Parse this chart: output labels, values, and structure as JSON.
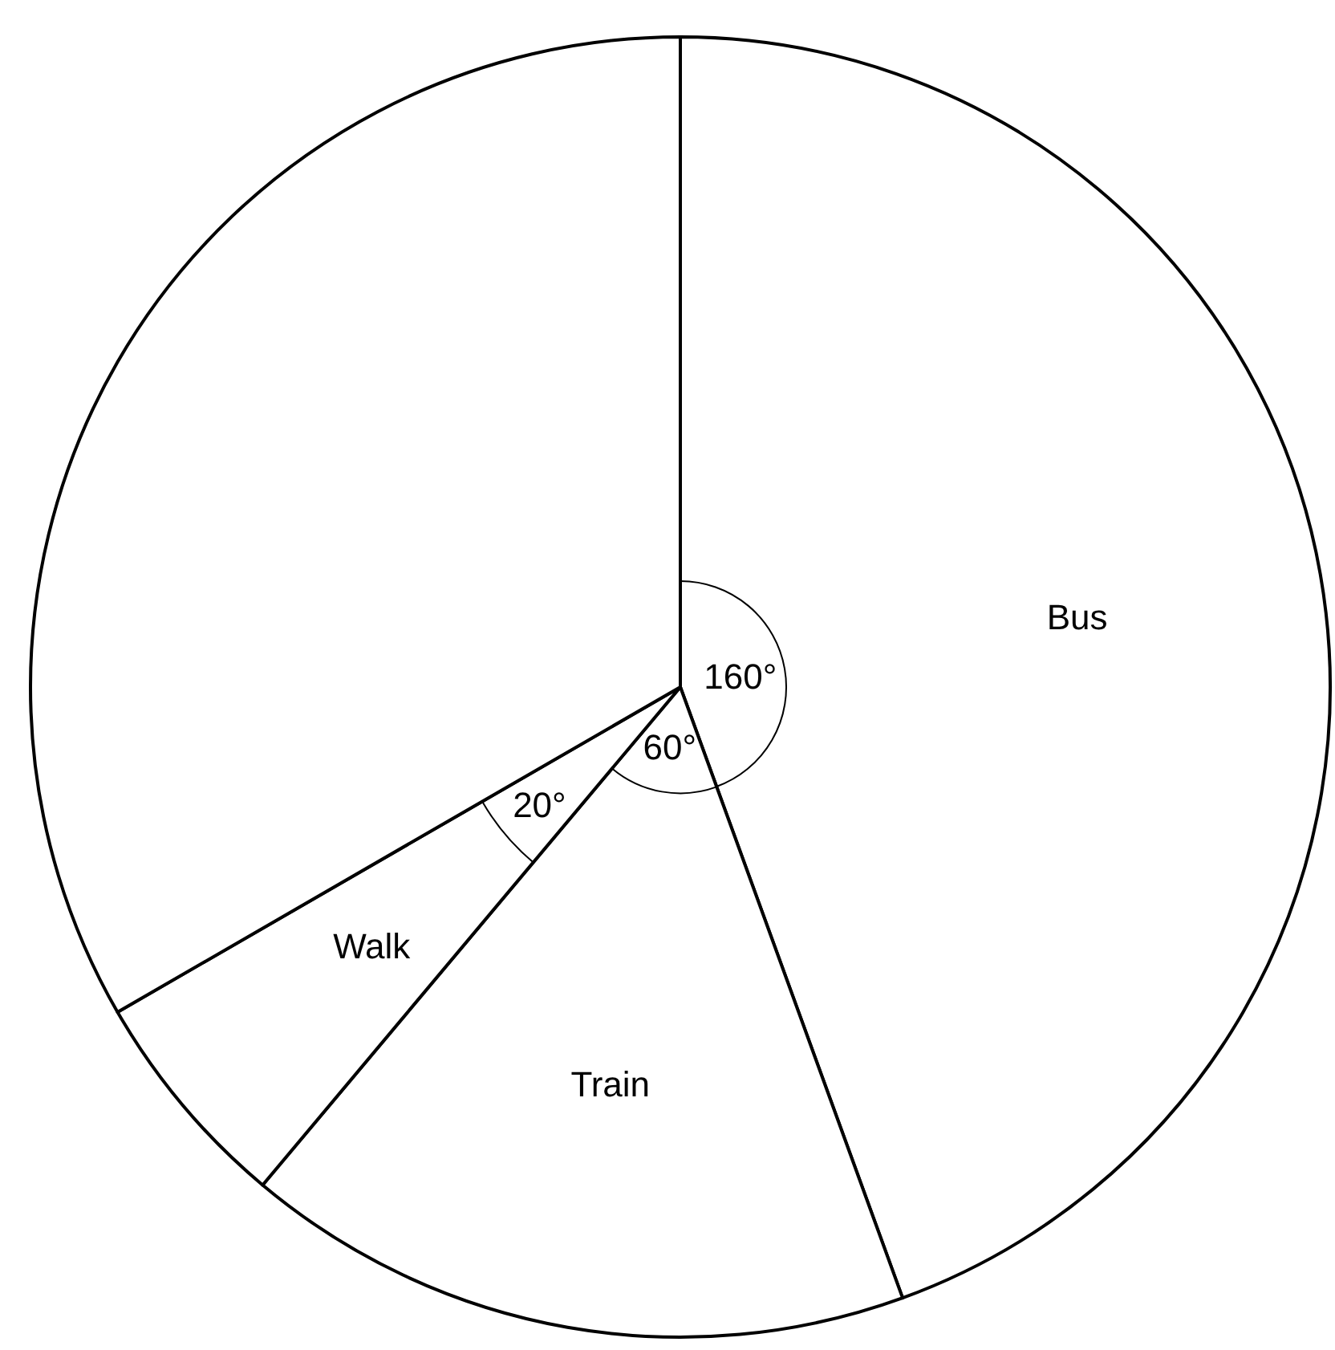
{
  "chart_data": {
    "type": "pie",
    "categories": [
      "Bus",
      "Train",
      "Walk",
      null
    ],
    "values": [
      160,
      60,
      20,
      120
    ],
    "colors": [
      "#ffffff",
      "#ffffff",
      "#ffffff",
      "#ffffff"
    ],
    "value_labels": [
      "160°",
      "60°",
      "20°",
      null
    ]
  }
}
